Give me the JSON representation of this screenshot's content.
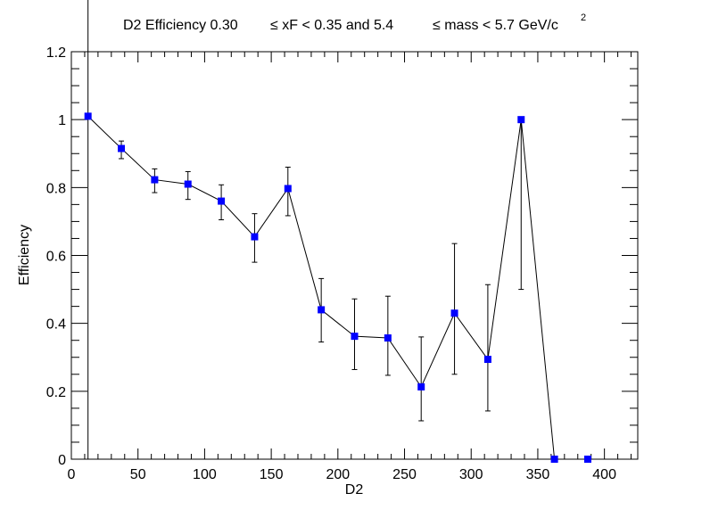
{
  "chart_data": {
    "type": "scatter",
    "title_parts": {
      "prefix": "D2 Efficiency 0.30",
      "mid1": "≤ xF < 0.35 and 5.4",
      "mid2": "≤ mass < 5.7 GeV/c",
      "sup": "2"
    },
    "xlabel": "D2",
    "ylabel": "Efficiency",
    "xlim": [
      0,
      425
    ],
    "ylim": [
      0,
      1.2
    ],
    "xticks": [
      0,
      50,
      100,
      150,
      200,
      250,
      300,
      350,
      400
    ],
    "xtick_labels": [
      "0",
      "50",
      "100",
      "150",
      "200",
      "250",
      "300",
      "350",
      "400"
    ],
    "yticks": [
      0,
      0.2,
      0.4,
      0.6,
      0.8,
      1.0,
      1.2
    ],
    "ytick_labels": [
      "0",
      "0.2",
      "0.4",
      "0.6",
      "0.8",
      "1",
      "1.2"
    ],
    "grid": false,
    "marker_color": "#0000ff",
    "line_color": "#000000",
    "series": [
      {
        "x": [
          12.5,
          37.5,
          62.5,
          87.5,
          112.5,
          137.5,
          162.5,
          187.5,
          212.5,
          237.5,
          262.5,
          287.5,
          312.5,
          337.5,
          362.5,
          387.5
        ],
        "y": [
          1.01,
          0.915,
          0.823,
          0.81,
          0.76,
          0.655,
          0.797,
          0.44,
          0.362,
          0.357,
          0.213,
          0.43,
          0.294,
          1.0,
          0.0,
          0.0
        ],
        "err_low": [
          1.01,
          0.03,
          0.038,
          0.045,
          0.055,
          0.075,
          0.08,
          0.095,
          0.098,
          0.11,
          0.1,
          0.18,
          0.152,
          0.5,
          0.0,
          0.0
        ],
        "err_high": [
          0.37,
          0.022,
          0.032,
          0.037,
          0.048,
          0.068,
          0.063,
          0.092,
          0.11,
          0.123,
          0.147,
          0.205,
          0.22,
          0.0,
          0.0,
          0.0
        ]
      }
    ]
  }
}
